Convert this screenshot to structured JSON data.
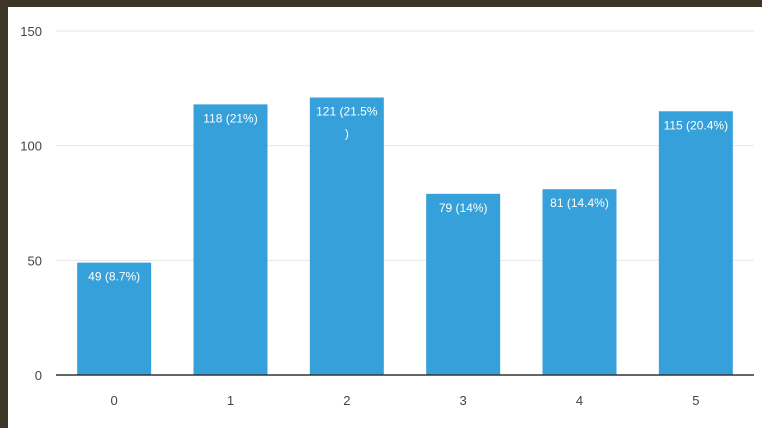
{
  "chart_data": {
    "type": "bar",
    "title": "",
    "xlabel": "",
    "ylabel": "",
    "categories": [
      "0",
      "1",
      "2",
      "3",
      "4",
      "5"
    ],
    "values": [
      49,
      118,
      121,
      79,
      81,
      115
    ],
    "data_labels": [
      [
        "49 (8.7%)"
      ],
      [
        "118 (21%)"
      ],
      [
        "121 (21.5%",
        ")"
      ],
      [
        "79 (14%)"
      ],
      [
        "81 (14.4%)"
      ],
      [
        "115 (20.4%)"
      ]
    ],
    "ylim": [
      0,
      150
    ],
    "yticks": [
      0,
      50,
      100,
      150
    ],
    "grid": true,
    "legend": "none",
    "colors": {
      "bar": "#36a0da",
      "grid": "#e6e6e6",
      "axis": "#333333",
      "background": "#ffffff",
      "outer_border": "#3b3626"
    }
  }
}
